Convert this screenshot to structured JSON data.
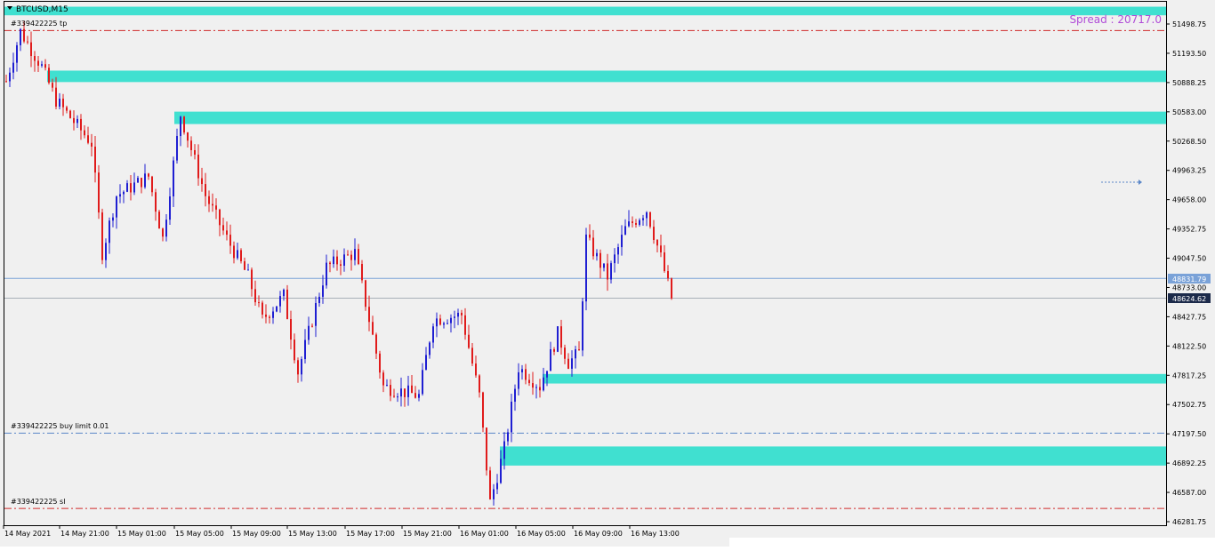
{
  "symbol_label": "BTCUSD,M15",
  "spread_text": "Spread : 20717.0",
  "colors": {
    "background": "#f0f0f0",
    "zone": "#40e0d0",
    "bull_candle": "#1f1fd2",
    "bear_candle": "#e01b1b",
    "order_line": "#d02a2a",
    "limit_line": "#5a86c8",
    "spread_text": "#b04cd8",
    "ask_tag": "#7aa2d8",
    "bid_tag": "#1c2a4a"
  },
  "order_labels": {
    "tp": "#339422225 tp",
    "buy_limit": "#339422225 buy limit 0.01",
    "sl": "#339422225 sl"
  },
  "order_levels": {
    "tp": 51430,
    "buy_limit": 47210,
    "sl": 46420
  },
  "price_tags": {
    "ask": "48831.79",
    "bid": "48624.62"
  },
  "price_ticks": [
    "51498.75",
    "51193.50",
    "50888.25",
    "50583.00",
    "50268.50",
    "49963.25",
    "49658.00",
    "49352.75",
    "49047.50",
    "48733.00",
    "48427.75",
    "48122.50",
    "47817.25",
    "47502.75",
    "47197.50",
    "46892.25",
    "46587.00",
    "46281.75"
  ],
  "time_labels": [
    "14 May 2021",
    "14 May 21:00",
    "15 May 01:00",
    "15 May 05:00",
    "15 May 09:00",
    "15 May 13:00",
    "15 May 17:00",
    "15 May 21:00",
    "16 May 01:00",
    "16 May 05:00",
    "16 May 09:00",
    "16 May 13:00"
  ],
  "zones": [
    {
      "name": "zone-top",
      "from_price": 51680,
      "to_price": 51590,
      "from_label": "14 May 2021"
    },
    {
      "name": "zone-50900",
      "from_price": 51010,
      "to_price": 50890,
      "from_label": "14 May 21:00"
    },
    {
      "name": "zone-50500",
      "from_price": 50580,
      "to_price": 50450,
      "from_label": "15 May 05:00"
    },
    {
      "name": "zone-47800",
      "from_price": 47830,
      "to_price": 47730,
      "from_label": "16 May 05:00"
    },
    {
      "name": "zone-47000",
      "from_price": 47070,
      "to_price": 46870,
      "from_label": "16 May 01:00"
    }
  ],
  "chart_data": {
    "type": "candlestick",
    "symbol": "BTCUSD",
    "timeframe": "M15",
    "ylim": [
      46230,
      51700
    ],
    "x_labels": [
      "14 May 2021",
      "14 May 21:00",
      "15 May 01:00",
      "15 May 05:00",
      "15 May 09:00",
      "15 May 13:00",
      "15 May 17:00",
      "15 May 21:00",
      "16 May 01:00",
      "16 May 05:00",
      "16 May 09:00",
      "16 May 13:00"
    ],
    "candle_count": 188,
    "close_path": [
      {
        "i": 0,
        "price": 50900
      },
      {
        "i": 4,
        "price": 51420
      },
      {
        "i": 10,
        "price": 51050
      },
      {
        "i": 14,
        "price": 50700
      },
      {
        "i": 24,
        "price": 50250
      },
      {
        "i": 27,
        "price": 49100
      },
      {
        "i": 31,
        "price": 49700
      },
      {
        "i": 40,
        "price": 49900
      },
      {
        "i": 44,
        "price": 49250
      },
      {
        "i": 49,
        "price": 50550
      },
      {
        "i": 56,
        "price": 49700
      },
      {
        "i": 62,
        "price": 49250
      },
      {
        "i": 68,
        "price": 48850
      },
      {
        "i": 72,
        "price": 48400
      },
      {
        "i": 78,
        "price": 48650
      },
      {
        "i": 82,
        "price": 47850
      },
      {
        "i": 90,
        "price": 48950
      },
      {
        "i": 98,
        "price": 49100
      },
      {
        "i": 106,
        "price": 47700
      },
      {
        "i": 116,
        "price": 47600
      },
      {
        "i": 120,
        "price": 48400
      },
      {
        "i": 128,
        "price": 48450
      },
      {
        "i": 133,
        "price": 47600
      },
      {
        "i": 136,
        "price": 46480
      },
      {
        "i": 140,
        "price": 47050
      },
      {
        "i": 144,
        "price": 47900
      },
      {
        "i": 150,
        "price": 47700
      },
      {
        "i": 155,
        "price": 48250
      },
      {
        "i": 158,
        "price": 47950
      },
      {
        "i": 161,
        "price": 48050
      },
      {
        "i": 163,
        "price": 49250
      },
      {
        "i": 169,
        "price": 48850
      },
      {
        "i": 174,
        "price": 49350
      },
      {
        "i": 180,
        "price": 49550
      },
      {
        "i": 184,
        "price": 49050
      },
      {
        "i": 187,
        "price": 48625
      }
    ],
    "last_bid": 48624.62,
    "last_ask": 48831.79,
    "levels": [
      {
        "label": "#339422225 tp",
        "price": 51430
      },
      {
        "label": "#339422225 buy limit 0.01",
        "price": 47210
      },
      {
        "label": "#339422225 sl",
        "price": 46420
      }
    ]
  }
}
